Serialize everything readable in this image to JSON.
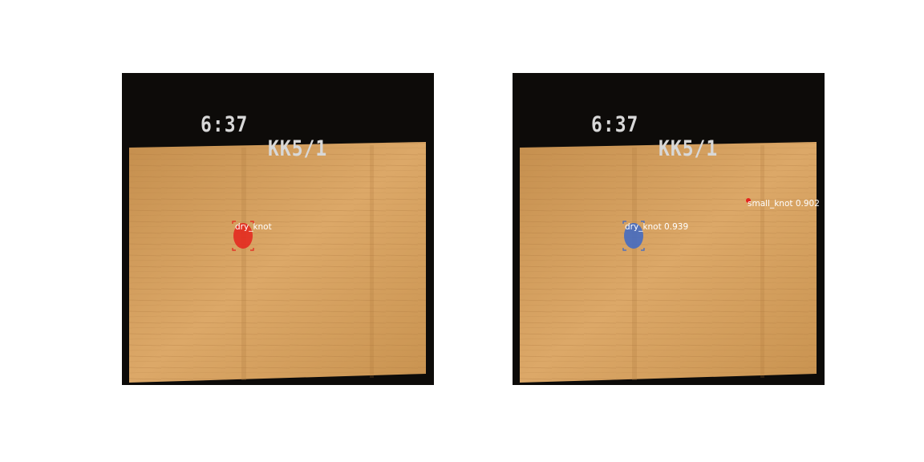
{
  "overlay": {
    "time": "6:37",
    "id": "KK5/1"
  },
  "left_panel": {
    "detections": [
      {
        "label": "dry_knot",
        "color": "#e5231c"
      }
    ]
  },
  "right_panel": {
    "detections": [
      {
        "label": "dry_knot 0.939",
        "color": "#3c68c8"
      },
      {
        "label": "small_knot 0.902",
        "color": "#e5231c"
      }
    ]
  },
  "colors": {
    "wood": "#d49a5a",
    "background": "#0d0b09"
  }
}
